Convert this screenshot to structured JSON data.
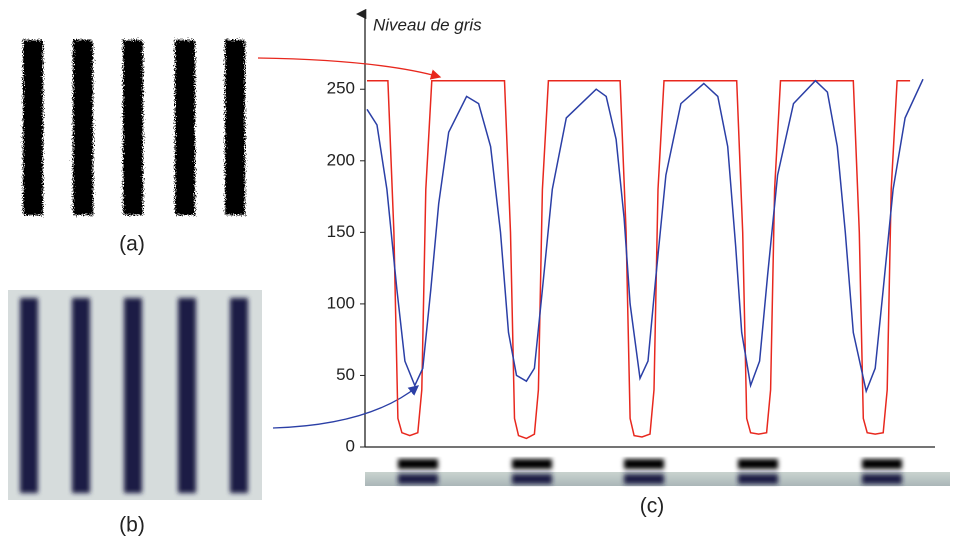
{
  "chart_data": {
    "type": "line",
    "y_label": "Niveau de gris",
    "xlim": [
      0,
      570
    ],
    "ylim": [
      0,
      290
    ],
    "yticks": [
      0,
      50,
      100,
      150,
      200,
      250
    ],
    "series": [
      {
        "color": "#e8281e",
        "x": [
          0,
          21,
          27,
          31,
          35,
          43,
          51,
          55,
          59,
          65,
          138,
          144,
          148,
          152,
          160,
          168,
          172,
          176,
          182,
          254,
          260,
          264,
          268,
          276,
          284,
          288,
          292,
          298,
          371,
          377,
          381,
          385,
          393,
          401,
          405,
          409,
          415,
          488,
          494,
          498,
          502,
          510,
          518,
          522,
          526,
          532,
          545
        ],
        "values": [
          256,
          256,
          150,
          20,
          10,
          8,
          10,
          40,
          180,
          256,
          256,
          150,
          20,
          8,
          6,
          9,
          40,
          180,
          256,
          256,
          150,
          20,
          8,
          7,
          9,
          40,
          180,
          256,
          256,
          150,
          20,
          10,
          9,
          10,
          40,
          180,
          256,
          256,
          150,
          20,
          10,
          9,
          10,
          40,
          180,
          256,
          256
        ]
      },
      {
        "color": "#2b3fa6",
        "x": [
          0,
          10,
          20,
          30,
          38,
          48,
          56,
          64,
          72,
          82,
          100,
          112,
          124,
          134,
          142,
          150,
          160,
          168,
          176,
          186,
          200,
          230,
          240,
          250,
          258,
          264,
          274,
          282,
          290,
          300,
          315,
          338,
          352,
          362,
          370,
          376,
          385,
          394,
          402,
          412,
          428,
          450,
          462,
          472,
          480,
          488,
          501,
          510,
          518,
          528,
          540,
          558
        ],
        "values": [
          236,
          225,
          180,
          110,
          60,
          43,
          55,
          110,
          170,
          220,
          245,
          240,
          210,
          150,
          80,
          50,
          46,
          55,
          110,
          180,
          230,
          250,
          245,
          215,
          160,
          100,
          48,
          60,
          120,
          190,
          240,
          254,
          245,
          210,
          140,
          80,
          43,
          60,
          120,
          190,
          240,
          256,
          248,
          210,
          150,
          80,
          39,
          55,
          110,
          180,
          230,
          257
        ]
      }
    ]
  },
  "panels": [
    "(a)",
    "(b)",
    "(c)"
  ]
}
